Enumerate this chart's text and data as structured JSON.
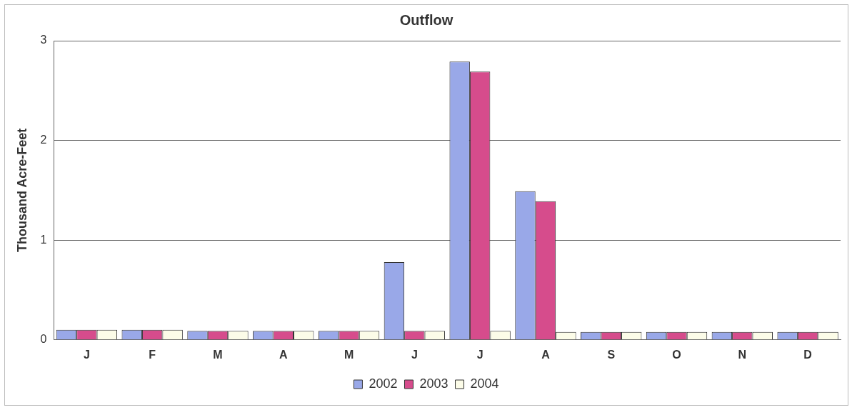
{
  "chart_data": {
    "type": "bar",
    "title": "Outflow",
    "ylabel": "Thousand Acre-Feet",
    "categories": [
      "J",
      "F",
      "M",
      "A",
      "M",
      "J",
      "J",
      "A",
      "S",
      "O",
      "N",
      "D"
    ],
    "series": [
      {
        "name": "2002",
        "color": "#99a8e8",
        "values": [
          0.1,
          0.1,
          0.09,
          0.09,
          0.09,
          0.78,
          2.79,
          1.49,
          0.08,
          0.08,
          0.08,
          0.08
        ]
      },
      {
        "name": "2003",
        "color": "#d64c8c",
        "values": [
          0.1,
          0.1,
          0.09,
          0.09,
          0.09,
          0.09,
          2.69,
          1.39,
          0.08,
          0.08,
          0.08,
          0.08
        ]
      },
      {
        "name": "2004",
        "color": "#fcfce8",
        "values": [
          0.1,
          0.1,
          0.09,
          0.09,
          0.09,
          0.09,
          0.09,
          0.08,
          0.08,
          0.08,
          0.08,
          0.08
        ]
      }
    ],
    "ylim": [
      0,
      3
    ],
    "yticks": [
      0,
      1,
      2,
      3
    ],
    "grid": "y",
    "legend": "bottom"
  }
}
